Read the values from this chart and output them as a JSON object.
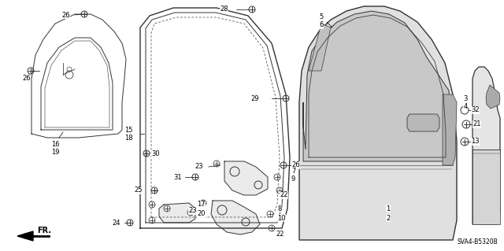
{
  "bg_color": "#ffffff",
  "line_color": "#333333",
  "diagram_code": "SVA4-B5320B",
  "figsize": [
    6.4,
    3.19
  ],
  "dpi": 100
}
